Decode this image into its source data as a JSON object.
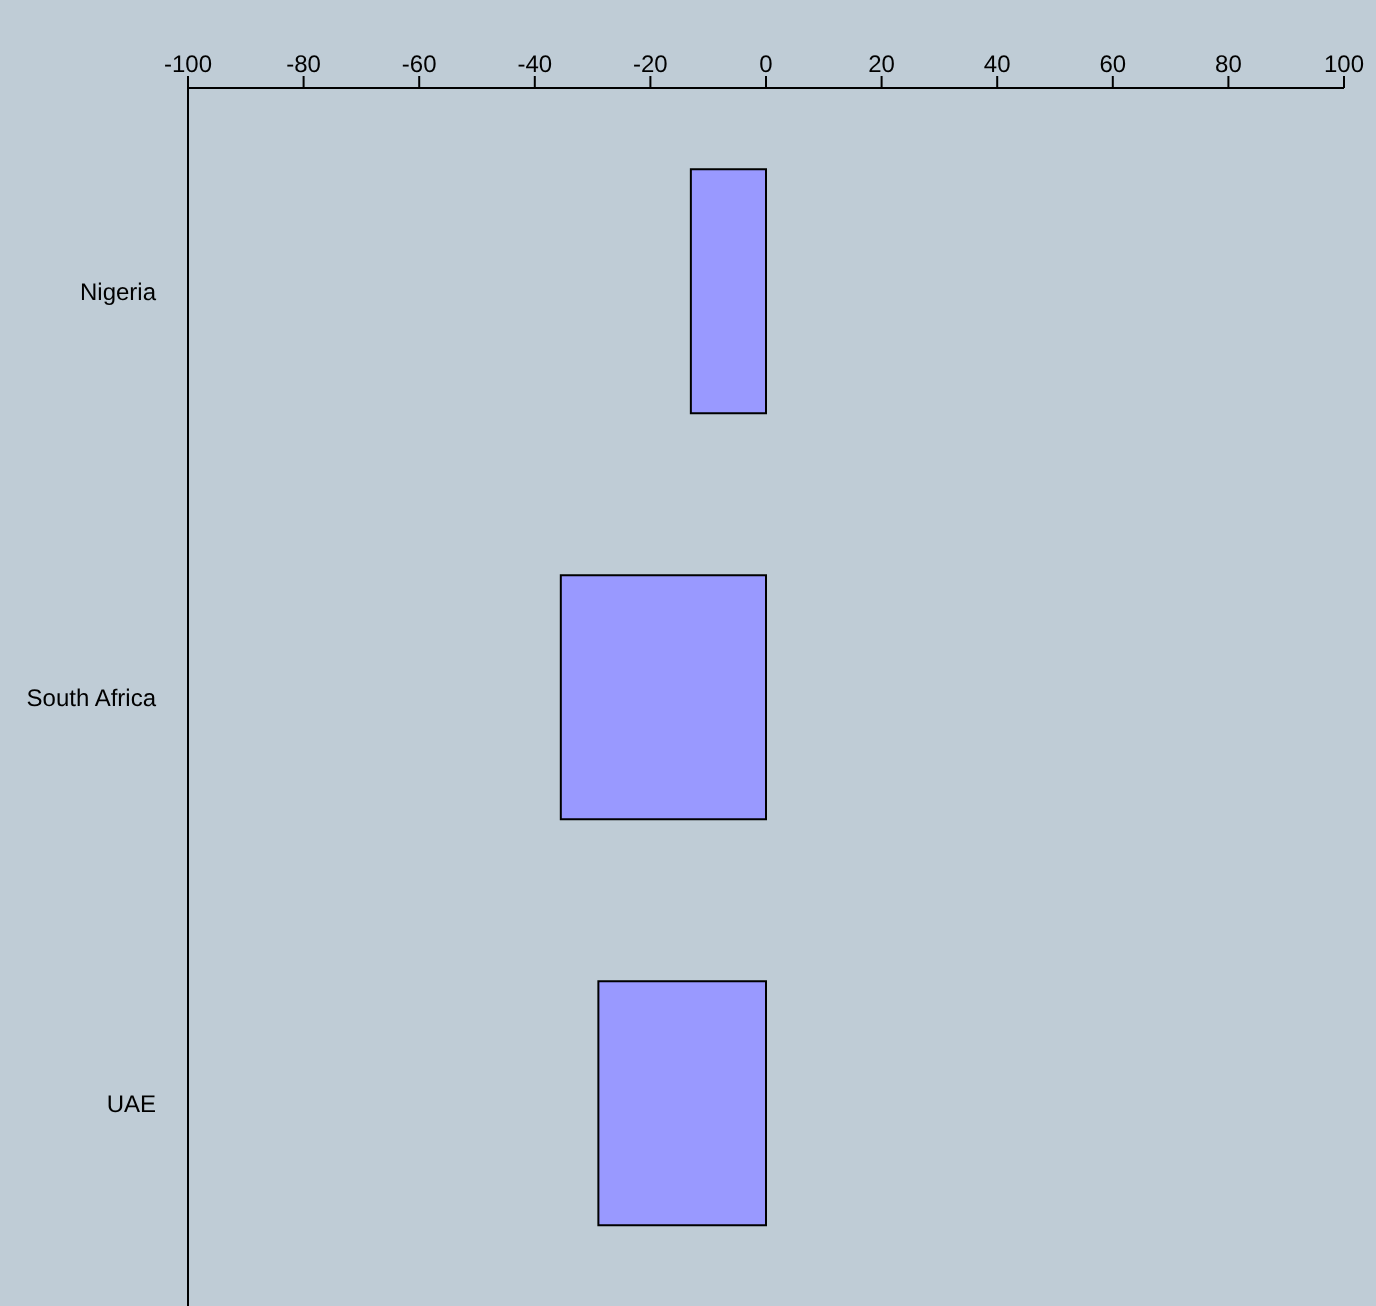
{
  "chart_data": {
    "type": "bar",
    "orientation": "horizontal",
    "categories": [
      "Nigeria",
      "South Africa",
      "UAE"
    ],
    "values": [
      -13,
      -35.5,
      -29
    ],
    "color": "#9999ff",
    "xlim": [
      -100,
      100
    ],
    "xticks": [
      -100,
      -80,
      -60,
      -40,
      -20,
      0,
      20,
      40,
      60,
      80,
      100
    ],
    "grid": false,
    "legend": false
  }
}
